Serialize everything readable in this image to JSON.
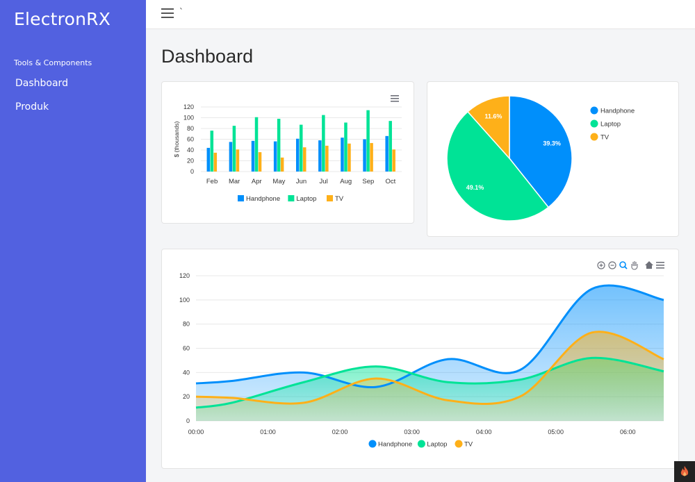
{
  "brand": "ElectronRX",
  "sidebar": {
    "section_title": "Tools & Components",
    "items": [
      {
        "label": "Dashboard"
      },
      {
        "label": "Produk"
      }
    ]
  },
  "topbar": {
    "menu_icon": "hamburger-icon",
    "extra": "`"
  },
  "page_title": "Dashboard",
  "colors": {
    "sidebar": "#5261e0",
    "handphone": "#008ffb",
    "laptop": "#00e396",
    "tv": "#feb019"
  },
  "chart_data": [
    {
      "type": "bar",
      "ylabel": "$ (thousands)",
      "ylim": [
        0,
        120
      ],
      "yticks": [
        0,
        20,
        40,
        60,
        80,
        100,
        120
      ],
      "categories": [
        "Feb",
        "Mar",
        "Apr",
        "May",
        "Jun",
        "Jul",
        "Aug",
        "Sep",
        "Oct"
      ],
      "series": [
        {
          "name": "Handphone",
          "values": [
            44,
            55,
            57,
            56,
            61,
            58,
            63,
            60,
            66
          ]
        },
        {
          "name": "Laptop",
          "values": [
            76,
            85,
            101,
            98,
            87,
            105,
            91,
            114,
            94
          ]
        },
        {
          "name": "TV",
          "values": [
            35,
            41,
            36,
            26,
            45,
            48,
            52,
            53,
            41
          ]
        }
      ],
      "legend": "bottom",
      "menu_icon": "hamburger-icon"
    },
    {
      "type": "pie",
      "series": [
        {
          "name": "Handphone",
          "value": 39.3,
          "label": "39.3%"
        },
        {
          "name": "Laptop",
          "value": 49.1,
          "label": "49.1%"
        },
        {
          "name": "TV",
          "value": 11.6,
          "label": "11.6%"
        }
      ],
      "legend": "right"
    },
    {
      "type": "area",
      "ylim": [
        0,
        120
      ],
      "yticks": [
        0,
        20,
        40,
        60,
        80,
        100,
        120
      ],
      "x": [
        "00:00",
        "01:00",
        "02:00",
        "03:00",
        "04:00",
        "05:00",
        "06:00"
      ],
      "series": [
        {
          "name": "Handphone",
          "x": [
            0,
            0.5,
            1.5,
            2.5,
            3.5,
            4.5,
            5.5,
            6.5
          ],
          "values": [
            31,
            33,
            40,
            28,
            51,
            42,
            109,
            100
          ]
        },
        {
          "name": "Laptop",
          "x": [
            0,
            0.5,
            1.5,
            2.5,
            3.5,
            4.5,
            5.5,
            6.5
          ],
          "values": [
            11,
            15,
            32,
            45,
            32,
            34,
            52,
            41
          ]
        },
        {
          "name": "TV",
          "x": [
            0,
            0.5,
            1.5,
            2.5,
            3.5,
            4.5,
            5.5,
            6.5
          ],
          "values": [
            20,
            19,
            15,
            35,
            17,
            20,
            73,
            51
          ]
        }
      ],
      "legend": "bottom",
      "toolbar": [
        "zoom-in-icon",
        "zoom-out-icon",
        "zoom-select-icon",
        "pan-icon",
        "home-icon",
        "hamburger-icon"
      ]
    }
  ]
}
